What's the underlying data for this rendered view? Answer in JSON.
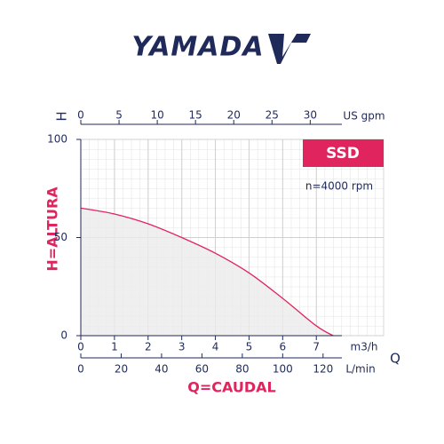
{
  "logo": "YAMADA",
  "chart_data": {
    "type": "line",
    "model": "SSD",
    "speed": "n=4000 rpm",
    "y_label": "H=ALTURA",
    "x_label": "Q=CAUDAL",
    "y_symbol": "H",
    "x_symbol": "Q",
    "x_unit": "m3/h",
    "x2_unit": "US gpm",
    "x3_unit": "L/min",
    "xlim": [
      0,
      9
    ],
    "xticks": [
      0,
      1,
      2,
      3,
      4,
      5,
      6,
      7
    ],
    "x2lim": [
      0,
      39.6
    ],
    "x2ticks": [
      0,
      5,
      10,
      15,
      20,
      25,
      30
    ],
    "x3lim": [
      0,
      150
    ],
    "x3ticks": [
      0,
      20,
      40,
      60,
      80,
      100,
      120
    ],
    "ylim": [
      0,
      100
    ],
    "yticks": [
      0,
      50,
      100
    ],
    "grid": true,
    "series": [
      {
        "color": "#e0245e",
        "fill": "#ebebeb",
        "x": [
          0,
          1,
          2,
          3,
          4,
          5,
          6,
          7,
          7.5
        ],
        "values": [
          65,
          62,
          57,
          50,
          42,
          32,
          19,
          5,
          0
        ]
      }
    ]
  }
}
